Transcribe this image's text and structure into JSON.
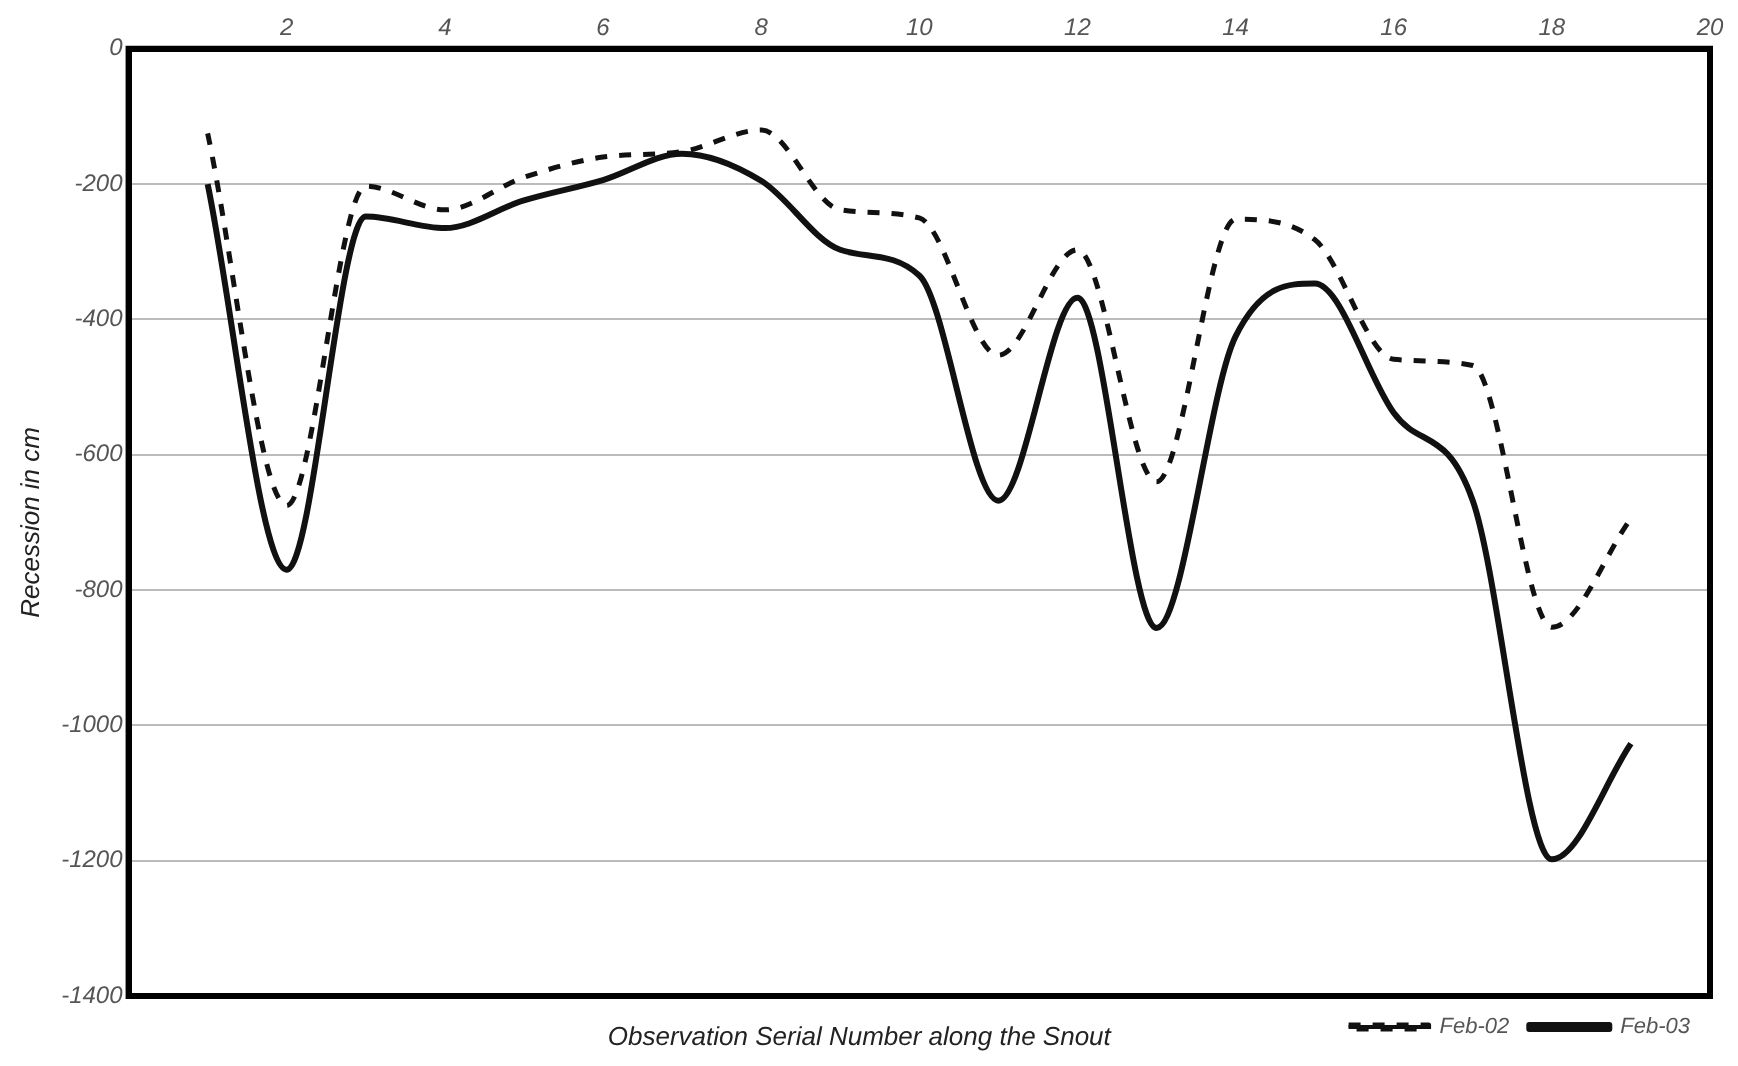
{
  "chart_data": {
    "type": "line",
    "xlabel": "Observation Serial Number along the Snout",
    "ylabel": "Recession in cm",
    "x": [
      1,
      2,
      3,
      4,
      5,
      6,
      7,
      8,
      9,
      10,
      11,
      12,
      13,
      14,
      15,
      16,
      17,
      18,
      19
    ],
    "series": [
      {
        "name": "Feb-02",
        "color": "#111111",
        "line_style": "dashed",
        "values": [
          -125,
          -675,
          -203,
          -238,
          -190,
          -160,
          -152,
          -120,
          -238,
          -250,
          -453,
          -297,
          -640,
          -252,
          -282,
          -459,
          -468,
          -855,
          -694
        ]
      },
      {
        "name": "Feb-03",
        "color": "#111111",
        "line_style": "solid",
        "values": [
          -200,
          -770,
          -248,
          -265,
          -224,
          -194,
          -155,
          -195,
          -297,
          -335,
          -668,
          -368,
          -856,
          -425,
          -347,
          -538,
          -668,
          -1198,
          -1027
        ]
      }
    ],
    "xlim": [
      0,
      20
    ],
    "xticks": [
      2,
      4,
      6,
      8,
      10,
      12,
      14,
      16,
      18,
      20
    ],
    "ylim": [
      -1400,
      0
    ],
    "yticks": [
      -1400,
      -1200,
      -1000,
      -800,
      -600,
      -400,
      -200,
      0
    ],
    "grid": "y",
    "legend": "bottom right",
    "marker": "none"
  }
}
